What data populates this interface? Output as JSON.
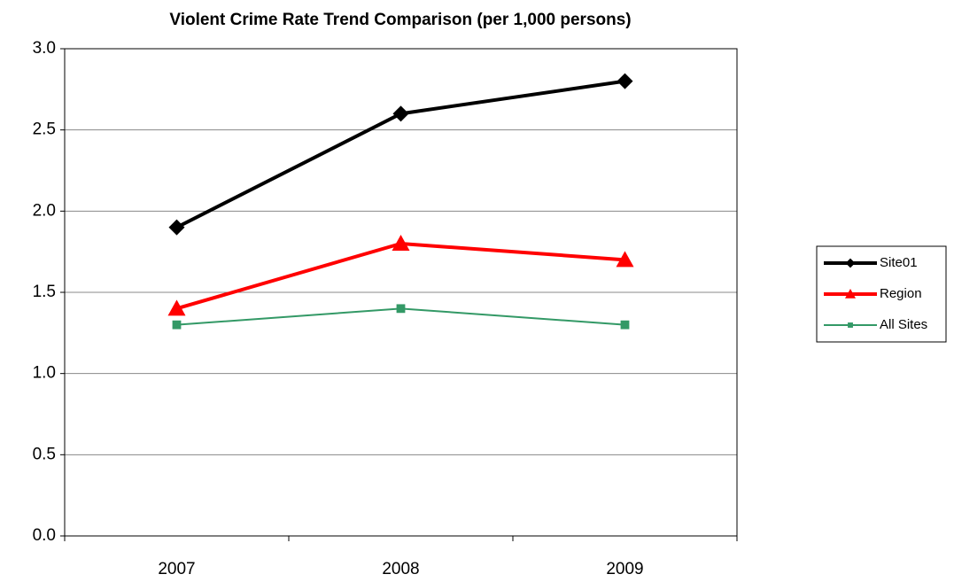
{
  "chart_data": {
    "type": "line",
    "title": "Violent Crime Rate Trend Comparison (per 1,000 persons)",
    "categories": [
      "2007",
      "2008",
      "2009"
    ],
    "series": [
      {
        "name": "Site01",
        "color": "#000000",
        "marker": "diamond",
        "values": [
          1.9,
          2.6,
          2.8
        ]
      },
      {
        "name": "Region",
        "color": "#ff0000",
        "marker": "triangle",
        "values": [
          1.4,
          1.8,
          1.7
        ]
      },
      {
        "name": "All Sites",
        "color": "#339966",
        "marker": "square",
        "values": [
          1.3,
          1.4,
          1.3
        ]
      }
    ],
    "ylim": [
      0,
      3
    ],
    "yticks": [
      {
        "value": 0,
        "label": "0.0"
      },
      0.5,
      {
        "value": 1,
        "label": "1.0"
      },
      1.5,
      {
        "value": 2,
        "label": "2.0"
      },
      2.5,
      {
        "value": 3,
        "label": "3.0"
      }
    ],
    "grid": true,
    "legend": "right"
  }
}
